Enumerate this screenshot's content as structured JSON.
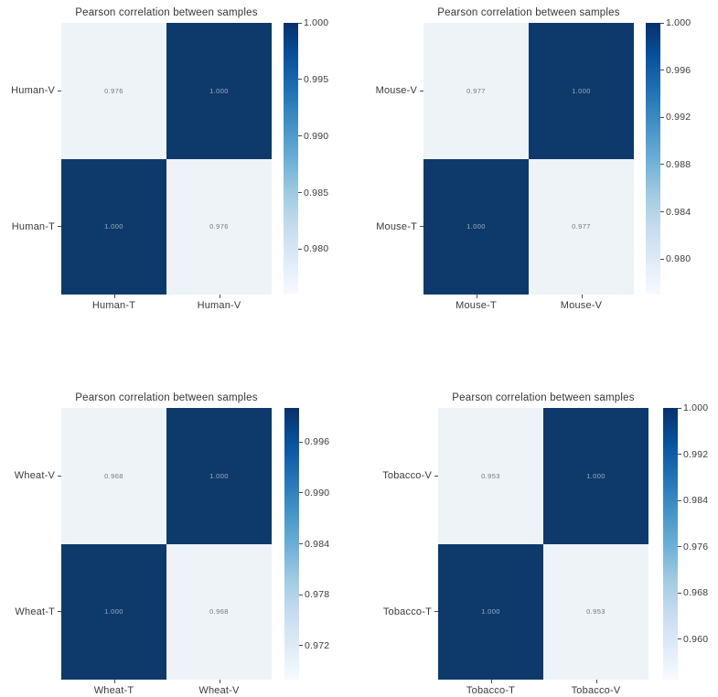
{
  "figure": {
    "background": "#ffffff"
  },
  "colors": {
    "cell_dark": "#0d3a6a",
    "cell_light": "#eef3f8",
    "annot_on_dark": "#9fadbf",
    "annot_on_light": "#6d7884",
    "label_text": "#3a3a3a",
    "colorbar_stops": [
      "#f7fbff",
      "#deebf7",
      "#c6dbef",
      "#9ecae1",
      "#6baed6",
      "#4292c6",
      "#2171b5",
      "#08519c",
      "#08306b"
    ]
  },
  "chart_data": [
    {
      "type": "heatmap",
      "title": "Pearson correlation between samples",
      "rows": [
        "Human-V",
        "Human-T"
      ],
      "cols": [
        "Human-T",
        "Human-V"
      ],
      "values": [
        [
          0.976,
          1.0
        ],
        [
          1.0,
          0.976
        ]
      ],
      "cell_labels": [
        [
          "0.976",
          "1.000"
        ],
        [
          "1.000",
          "0.976"
        ]
      ],
      "vmin": 0.976,
      "vmax": 1.0,
      "colormap": "Blues",
      "colorbar_ticks": [
        "1.000",
        "0.995",
        "0.990",
        "0.985",
        "0.980"
      ],
      "colorbar_position": "right"
    },
    {
      "type": "heatmap",
      "title": "Pearson correlation between samples",
      "rows": [
        "Mouse-V",
        "Mouse-T"
      ],
      "cols": [
        "Mouse-T",
        "Mouse-V"
      ],
      "values": [
        [
          0.977,
          1.0
        ],
        [
          1.0,
          0.977
        ]
      ],
      "cell_labels": [
        [
          "0.977",
          "1.000"
        ],
        [
          "1.000",
          "0.977"
        ]
      ],
      "vmin": 0.977,
      "vmax": 1.0,
      "colormap": "Blues",
      "colorbar_ticks": [
        "1.000",
        "0.996",
        "0.992",
        "0.988",
        "0.984",
        "0.980"
      ],
      "colorbar_position": "right"
    },
    {
      "type": "heatmap",
      "title": "Pearson correlation between samples",
      "rows": [
        "Wheat-V",
        "Wheat-T"
      ],
      "cols": [
        "Wheat-T",
        "Wheat-V"
      ],
      "values": [
        [
          0.968,
          1.0
        ],
        [
          1.0,
          0.968
        ]
      ],
      "cell_labels": [
        [
          "0.968",
          "1.000"
        ],
        [
          "1.000",
          "0.968"
        ]
      ],
      "vmin": 0.968,
      "vmax": 1.0,
      "colormap": "Blues",
      "colorbar_ticks": [
        "0.996",
        "0.990",
        "0.984",
        "0.978",
        "0.972"
      ],
      "colorbar_position": "right"
    },
    {
      "type": "heatmap",
      "title": "Pearson correlation between samples",
      "rows": [
        "Tobacco-V",
        "Tobacco-T"
      ],
      "cols": [
        "Tobacco-T",
        "Tobacco-V"
      ],
      "values": [
        [
          0.953,
          1.0
        ],
        [
          1.0,
          0.953
        ]
      ],
      "cell_labels": [
        [
          "0.953",
          "1.000"
        ],
        [
          "1.000",
          "0.953"
        ]
      ],
      "vmin": 0.953,
      "vmax": 1.0,
      "colormap": "Blues",
      "colorbar_ticks": [
        "1.000",
        "0.992",
        "0.984",
        "0.976",
        "0.968",
        "0.960"
      ],
      "colorbar_position": "right"
    }
  ]
}
